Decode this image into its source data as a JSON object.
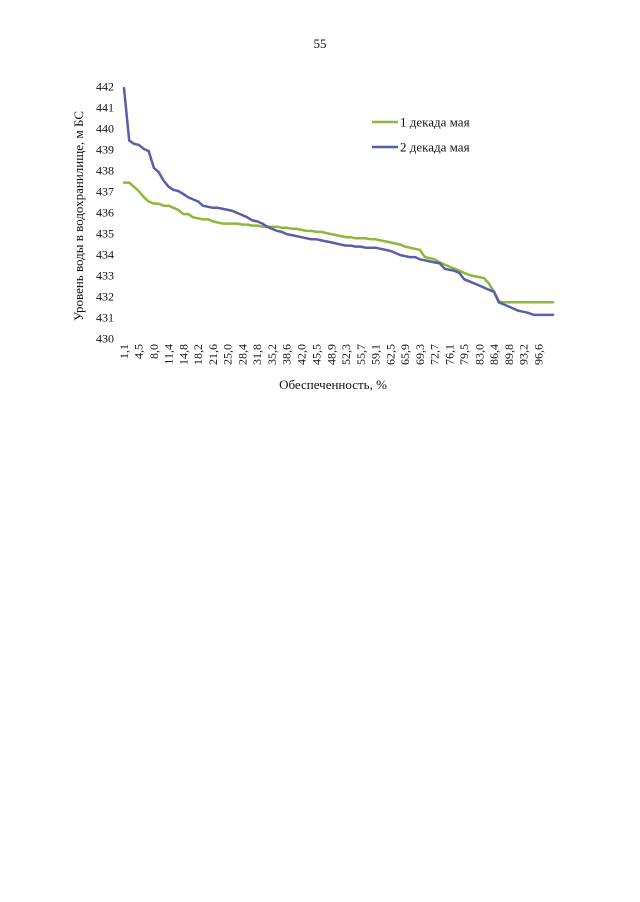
{
  "page": {
    "number": "55"
  },
  "chart_data": {
    "type": "line",
    "title": "",
    "xlabel": "Обеспеченность, %",
    "ylabel": "Уровень воды в водохранилище, м БС",
    "ylim": [
      430,
      442
    ],
    "yticks": [
      430,
      431,
      432,
      433,
      434,
      435,
      436,
      437,
      438,
      439,
      440,
      441,
      442
    ],
    "xlim": [
      1.1,
      100
    ],
    "xtick_labels": [
      "1,1",
      "4,5",
      "8,0",
      "11,4",
      "14,8",
      "18,2",
      "21,6",
      "25,0",
      "28,4",
      "31,8",
      "35,2",
      "38,6",
      "42,0",
      "45,5",
      "48,9",
      "52,3",
      "55,7",
      "59,1",
      "62,5",
      "65,9",
      "69,3",
      "72,7",
      "76,1",
      "79,5",
      "83,0",
      "86,4",
      "89,8",
      "93,2",
      "96,6"
    ],
    "xtick_values": [
      1.1,
      4.5,
      8.0,
      11.4,
      14.8,
      18.2,
      21.6,
      25.0,
      28.4,
      31.8,
      35.2,
      38.6,
      42.0,
      45.5,
      48.9,
      52.3,
      55.7,
      59.1,
      62.5,
      65.9,
      69.3,
      72.7,
      76.1,
      79.5,
      83.0,
      86.4,
      89.8,
      93.2,
      96.6
    ],
    "legend_position": "top-right",
    "series": [
      {
        "name": "1 декада мая",
        "color": "#8db63c",
        "x": [
          1.1,
          2.3,
          3.4,
          4.5,
          5.7,
          6.8,
          8.0,
          9.1,
          10.2,
          11.4,
          12.5,
          13.6,
          14.8,
          15.9,
          17.0,
          18.2,
          19.3,
          20.5,
          21.6,
          22.7,
          23.9,
          25.0,
          26.1,
          27.3,
          28.4,
          29.5,
          30.7,
          31.8,
          33.0,
          34.1,
          35.2,
          36.4,
          37.5,
          38.6,
          39.8,
          40.9,
          42.0,
          43.2,
          44.3,
          45.5,
          46.6,
          47.7,
          48.9,
          50.0,
          51.1,
          52.3,
          53.4,
          54.5,
          55.7,
          56.8,
          58.0,
          59.1,
          60.2,
          61.4,
          62.5,
          63.6,
          64.8,
          65.9,
          67.0,
          68.2,
          69.3,
          70.5,
          71.6,
          72.7,
          73.9,
          75.0,
          76.1,
          77.3,
          78.4,
          79.5,
          80.7,
          81.8,
          83.0,
          84.1,
          85.2,
          86.4,
          87.5,
          88.6,
          89.8,
          90.9,
          92.0,
          93.2,
          94.3,
          95.5,
          96.6,
          97.7,
          98.9,
          100.0
        ],
        "values": [
          437.4,
          437.4,
          437.2,
          437.0,
          436.7,
          436.5,
          436.4,
          436.4,
          436.3,
          436.3,
          436.2,
          436.1,
          435.9,
          435.9,
          435.75,
          435.7,
          435.65,
          435.65,
          435.55,
          435.5,
          435.45,
          435.45,
          435.45,
          435.45,
          435.4,
          435.4,
          435.35,
          435.35,
          435.3,
          435.3,
          435.3,
          435.3,
          435.25,
          435.25,
          435.2,
          435.2,
          435.15,
          435.1,
          435.1,
          435.05,
          435.05,
          435.0,
          434.95,
          434.9,
          434.85,
          434.8,
          434.8,
          434.75,
          434.75,
          434.75,
          434.7,
          434.7,
          434.65,
          434.6,
          434.55,
          434.5,
          434.45,
          434.35,
          434.3,
          434.25,
          434.2,
          433.85,
          433.8,
          433.75,
          433.6,
          433.5,
          433.4,
          433.3,
          433.2,
          433.1,
          433.0,
          432.95,
          432.9,
          432.85,
          432.6,
          432.2,
          431.75,
          431.7,
          431.7,
          431.7,
          431.7,
          431.7,
          431.7,
          431.7,
          431.7,
          431.7,
          431.7,
          431.7
        ]
      },
      {
        "name": "2 декада мая",
        "color": "#5b5ea6",
        "x": [
          1.1,
          2.3,
          3.4,
          4.5,
          5.7,
          6.8,
          8.0,
          9.1,
          10.2,
          11.4,
          12.5,
          13.6,
          14.8,
          15.9,
          17.0,
          18.2,
          19.3,
          20.5,
          21.6,
          22.7,
          23.9,
          25.0,
          26.1,
          27.3,
          28.4,
          29.5,
          30.7,
          31.8,
          33.0,
          34.1,
          35.2,
          36.4,
          37.5,
          38.6,
          39.8,
          40.9,
          42.0,
          43.2,
          44.3,
          45.5,
          46.6,
          47.7,
          48.9,
          50.0,
          51.1,
          52.3,
          53.4,
          54.5,
          55.7,
          56.8,
          58.0,
          59.1,
          60.2,
          61.4,
          62.5,
          63.6,
          64.8,
          65.9,
          67.0,
          68.2,
          69.3,
          70.5,
          71.6,
          72.7,
          73.9,
          75.0,
          76.1,
          77.3,
          78.4,
          79.5,
          80.7,
          81.8,
          83.0,
          84.1,
          85.2,
          86.4,
          87.5,
          88.6,
          89.8,
          90.9,
          92.0,
          93.2,
          94.3,
          95.5,
          96.6,
          97.7,
          98.9,
          100.0
        ],
        "values": [
          441.9,
          439.4,
          439.25,
          439.2,
          439.0,
          438.9,
          438.1,
          437.9,
          437.5,
          437.2,
          437.05,
          437.0,
          436.85,
          436.7,
          436.6,
          436.5,
          436.3,
          436.25,
          436.2,
          436.2,
          436.15,
          436.1,
          436.05,
          435.95,
          435.85,
          435.75,
          435.6,
          435.55,
          435.45,
          435.3,
          435.2,
          435.1,
          435.05,
          434.95,
          434.9,
          434.85,
          434.8,
          434.75,
          434.7,
          434.7,
          434.65,
          434.6,
          434.55,
          434.5,
          434.45,
          434.4,
          434.4,
          434.35,
          434.35,
          434.3,
          434.3,
          434.3,
          434.25,
          434.2,
          434.15,
          434.05,
          433.95,
          433.9,
          433.85,
          433.85,
          433.75,
          433.7,
          433.65,
          433.6,
          433.55,
          433.3,
          433.25,
          433.2,
          433.1,
          432.8,
          432.7,
          432.6,
          432.5,
          432.4,
          432.3,
          432.2,
          431.7,
          431.6,
          431.5,
          431.4,
          431.3,
          431.25,
          431.2,
          431.1,
          431.1,
          431.1,
          431.1,
          431.1
        ]
      }
    ]
  }
}
